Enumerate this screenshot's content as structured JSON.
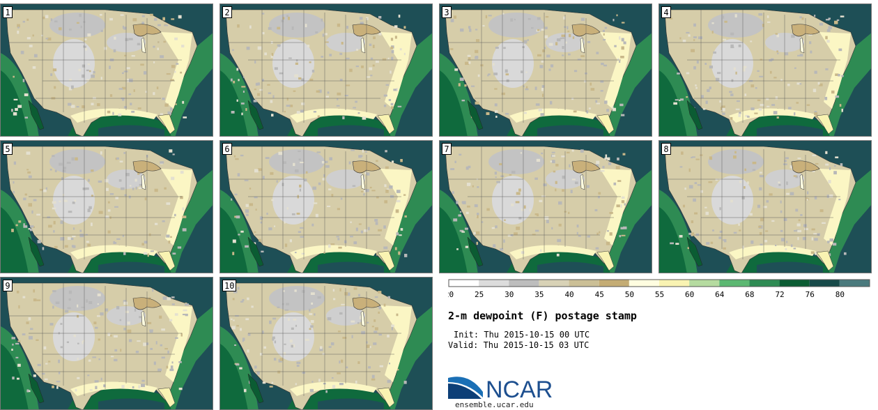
{
  "panels": [
    {
      "label": "1"
    },
    {
      "label": "2"
    },
    {
      "label": "3"
    },
    {
      "label": "4"
    },
    {
      "label": "5"
    },
    {
      "label": "6"
    },
    {
      "label": "7"
    },
    {
      "label": "8"
    },
    {
      "label": "9"
    },
    {
      "label": "10"
    }
  ],
  "colorbar": {
    "ticks": [
      "20",
      "25",
      "30",
      "35",
      "40",
      "45",
      "50",
      "55",
      "60",
      "64",
      "68",
      "72",
      "76",
      "80"
    ],
    "colors": [
      "#ffffff",
      "#dcdcdc",
      "#bdbdbd",
      "#d8d2b6",
      "#cbbf96",
      "#c4ac74",
      "#fffde0",
      "#f9f3b2",
      "#b5dba0",
      "#5cb872",
      "#2e8b53",
      "#0b5c33",
      "#174a49",
      "#4a7a7d"
    ]
  },
  "title": "2-m dewpoint (F) postage stamp",
  "init": "Init: Thu 2015-10-15 00 UTC",
  "valid": "Valid: Thu 2015-10-15 03 UTC",
  "logo_text": "NCAR",
  "website": "ensemble.ucar.edu",
  "colors": {
    "ocean_deep": "#1e4f56",
    "ocean_mid": "#0f6a3d",
    "land_tan": "#d6cda9",
    "land_gray": "#c3c3c3",
    "moist": "#fbf6c4"
  }
}
